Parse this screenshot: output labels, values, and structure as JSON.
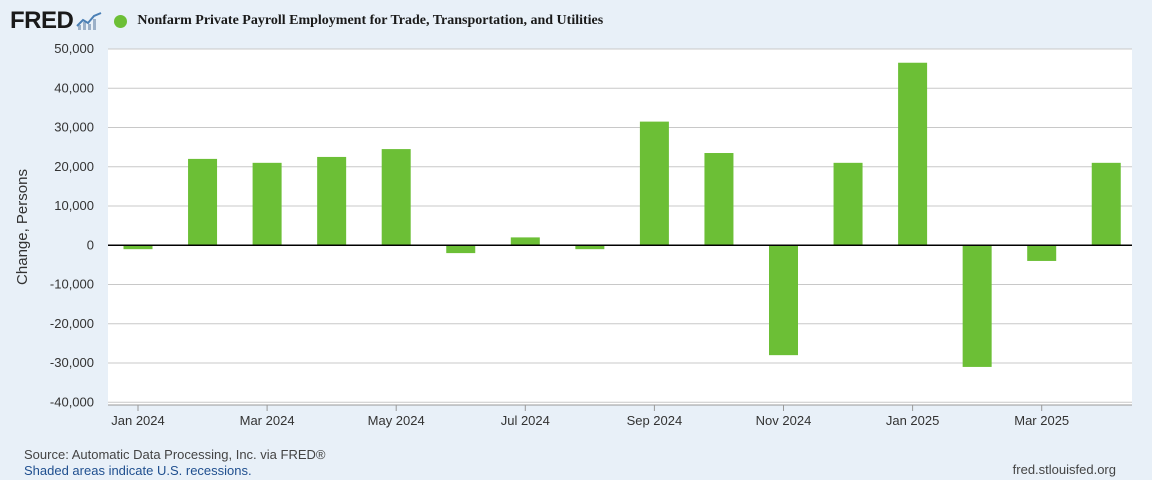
{
  "header": {
    "logo_text": "FRED",
    "logo_icon": "line-chart-icon"
  },
  "colors": {
    "series": "#6cbf36",
    "background": "#e8f0f8",
    "plot_background": "#ffffff",
    "grid": "#c8c8c8",
    "zero_line": "#000000"
  },
  "chart_data": {
    "type": "bar",
    "title": "Nonfarm Private Payroll Employment for Trade, Transportation, and Utilities",
    "ylabel": "Change, Persons",
    "xlabel": "",
    "ylim": [
      -40000,
      50000
    ],
    "yticks": [
      50000,
      40000,
      30000,
      20000,
      10000,
      0,
      -10000,
      -20000,
      -30000,
      -40000
    ],
    "ytick_labels": [
      "50,000",
      "40,000",
      "30,000",
      "20,000",
      "10,000",
      "0",
      "-10,000",
      "-20,000",
      "-30,000",
      "-40,000"
    ],
    "xtick_labels": [
      "Jan 2024",
      "Mar 2024",
      "May 2024",
      "Jul 2024",
      "Sep 2024",
      "Nov 2024",
      "Jan 2025",
      "Mar 2025"
    ],
    "grid": true,
    "legend_position": "top-left",
    "series": [
      {
        "name": "Nonfarm Private Payroll Employment for Trade, Transportation, and Utilities",
        "color": "#6cbf36",
        "categories": [
          "2024-01",
          "2024-02",
          "2024-03",
          "2024-04",
          "2024-05",
          "2024-06",
          "2024-07",
          "2024-08",
          "2024-09",
          "2024-10",
          "2024-11",
          "2024-12",
          "2025-01",
          "2025-02",
          "2025-03",
          "2025-04"
        ],
        "values": [
          -1000,
          22000,
          21000,
          22500,
          24500,
          -2000,
          2000,
          -1000,
          31500,
          23500,
          -28000,
          21000,
          46500,
          -31000,
          -4000,
          21000
        ]
      }
    ]
  },
  "footer": {
    "source": "Source: Automatic Data Processing, Inc. via FRED®",
    "recessions_note": "Shaded areas indicate U.S. recessions.",
    "site": "fred.stlouisfed.org"
  }
}
